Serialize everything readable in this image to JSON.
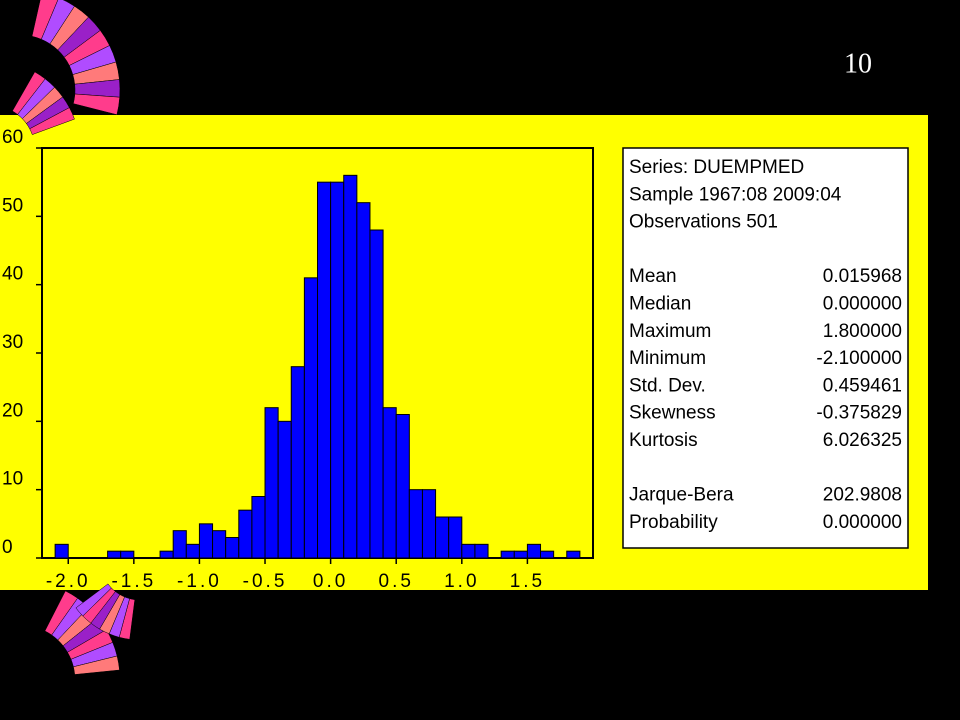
{
  "slide_number": "10",
  "chart_data": {
    "type": "histogram",
    "bins": [
      -2.1,
      -2.0,
      -1.9,
      -1.8,
      -1.7,
      -1.6,
      -1.5,
      -1.4,
      -1.3,
      -1.2,
      -1.1,
      -1.0,
      -0.9,
      -0.8,
      -0.7,
      -0.6,
      -0.5,
      -0.4,
      -0.3,
      -0.2,
      -0.1,
      0.0,
      0.1,
      0.2,
      0.3,
      0.4,
      0.5,
      0.6,
      0.7,
      0.8,
      0.9,
      1.0,
      1.1,
      1.2,
      1.3,
      1.4,
      1.5,
      1.6,
      1.7,
      1.8,
      1.9
    ],
    "counts": [
      2,
      0,
      0,
      0,
      1,
      1,
      0,
      0,
      1,
      4,
      2,
      5,
      4,
      3,
      7,
      9,
      22,
      20,
      28,
      41,
      55,
      55,
      56,
      52,
      48,
      22,
      21,
      10,
      10,
      6,
      6,
      2,
      2,
      0,
      1,
      1,
      2,
      1,
      0,
      1
    ],
    "color": "#0000ff",
    "xlim": [
      -2.2,
      2.0
    ],
    "xticks": [
      {
        "value": -2,
        "label": "-2.0"
      },
      -1.5,
      {
        "value": -1,
        "label": "-1.0"
      },
      -0.5,
      {
        "value": 0,
        "label": "0.0"
      },
      0.5,
      {
        "value": 1,
        "label": "1.0"
      },
      1.5
    ],
    "ylim": [
      0,
      60
    ],
    "yticks": [
      0,
      10,
      20,
      30,
      40,
      50,
      60
    ]
  },
  "stats": {
    "lines": [
      "Series: DUEMPMED",
      "Sample 1967:08 2009:04",
      "Observations 501"
    ],
    "groups": [
      [
        [
          "Mean",
          "0.015968"
        ],
        [
          "Median",
          "0.000000"
        ],
        [
          "Maximum",
          "1.800000"
        ],
        [
          "Minimum",
          "-2.100000"
        ],
        [
          "Std. Dev.",
          "0.459461"
        ],
        [
          "Skewness",
          "-0.375829"
        ],
        [
          "Kurtosis",
          "6.026325"
        ]
      ],
      [
        [
          "Jarque-Bera",
          "202.9808"
        ],
        [
          "Probability",
          "0.000000"
        ]
      ]
    ]
  }
}
